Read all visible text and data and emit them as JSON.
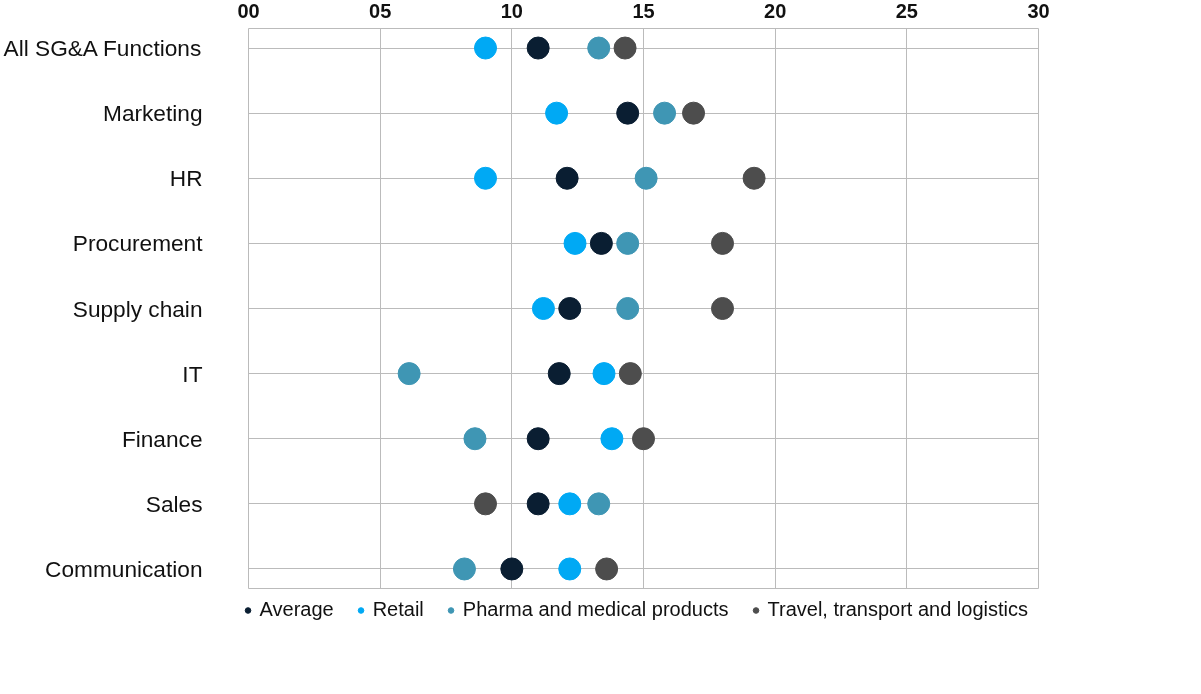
{
  "chart_data": {
    "type": "scatter",
    "categories": [
      "All SG&A Functions",
      "Marketing",
      "HR",
      "Procurement",
      "Supply chain",
      "IT",
      "Finance",
      "Sales",
      "Communication"
    ],
    "orientation": "horizontal",
    "xlim": [
      0,
      30
    ],
    "xticks": [
      {
        "value": 0,
        "label": "00"
      },
      {
        "value": 5,
        "label": "05"
      },
      10,
      15,
      20,
      25,
      30
    ],
    "grid": true,
    "legend": "bottom",
    "marker": "circle",
    "series": [
      {
        "name": "Average",
        "color": "#0a1e32",
        "values": [
          11.0,
          14.4,
          12.1,
          13.4,
          12.2,
          11.8,
          11.0,
          11.0,
          10.0
        ]
      },
      {
        "name": "Retail",
        "color": "#00a9f4",
        "values": [
          9.0,
          11.7,
          9.0,
          12.4,
          11.2,
          13.5,
          13.8,
          12.2,
          12.2
        ]
      },
      {
        "name": "Pharma and medical products",
        "color": "#3f96b4",
        "values": [
          13.3,
          15.8,
          15.1,
          14.4,
          14.4,
          6.1,
          8.6,
          13.3,
          8.2
        ]
      },
      {
        "name": "Travel, transport and logistics",
        "color": "#4d4d4d",
        "values": [
          14.3,
          16.9,
          19.2,
          18.0,
          18.0,
          14.5,
          15.0,
          9.0,
          13.6
        ]
      }
    ]
  }
}
